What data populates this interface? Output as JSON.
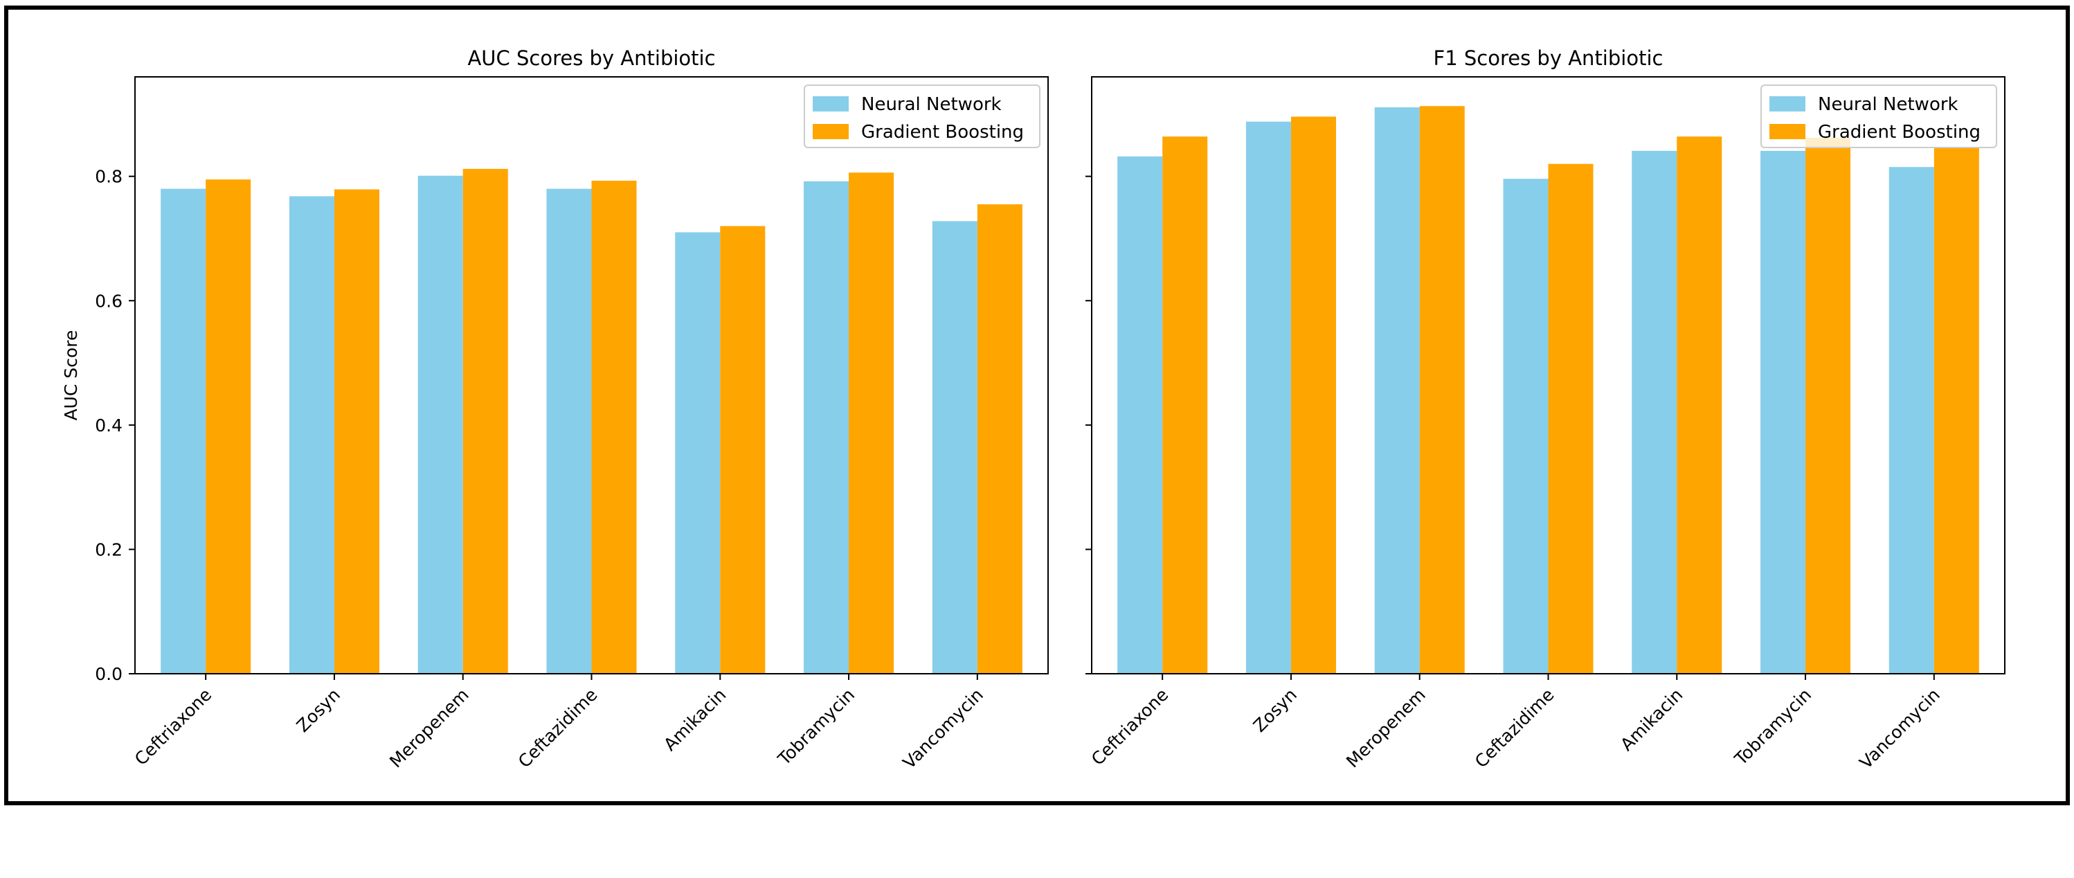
{
  "chart_data": [
    {
      "type": "bar",
      "title": "AUC Scores by Antibiotic",
      "xlabel": "",
      "ylabel": "AUC Score",
      "ylim": [
        0,
        0.96
      ],
      "yticks": [
        "0.0",
        "0.2",
        "0.4",
        "0.6",
        "0.8"
      ],
      "categories": [
        "Ceftriaxone",
        "Zosyn",
        "Meropenem",
        "Ceftazidime",
        "Amikacin",
        "Tobramycin",
        "Vancomycin"
      ],
      "series": [
        {
          "name": "Neural Network",
          "color": "#87CEEB",
          "values": [
            0.78,
            0.768,
            0.801,
            0.78,
            0.71,
            0.792,
            0.728
          ]
        },
        {
          "name": "Gradient Boosting",
          "color": "#FFA500",
          "values": [
            0.795,
            0.779,
            0.812,
            0.793,
            0.72,
            0.806,
            0.755
          ]
        }
      ],
      "legend": "top-right",
      "grid": false
    },
    {
      "type": "bar",
      "title": "F1 Scores by Antibiotic",
      "xlabel": "",
      "ylabel": "",
      "ylim": [
        0,
        0.96
      ],
      "categories": [
        "Ceftriaxone",
        "Zosyn",
        "Meropenem",
        "Ceftazidime",
        "Amikacin",
        "Tobramycin",
        "Vancomycin"
      ],
      "series": [
        {
          "name": "Neural Network",
          "color": "#87CEEB",
          "values": [
            0.832,
            0.888,
            0.911,
            0.796,
            0.841,
            0.841,
            0.815
          ]
        },
        {
          "name": "Gradient Boosting",
          "color": "#FFA500",
          "values": [
            0.864,
            0.896,
            0.913,
            0.82,
            0.864,
            0.862,
            0.846
          ]
        }
      ],
      "legend": "top-right",
      "grid": false
    }
  ]
}
